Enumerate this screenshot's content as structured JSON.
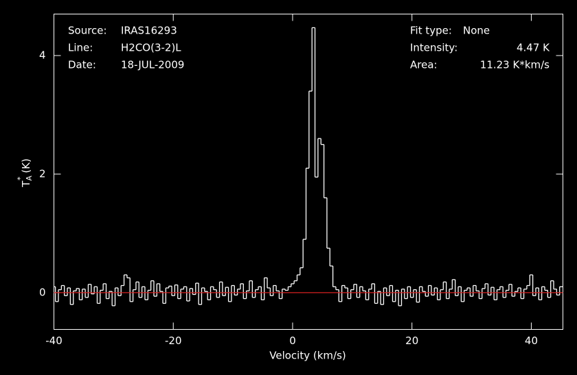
{
  "chart_data": {
    "type": "step",
    "xlabel": "Velocity (km/s)",
    "ylabel": {
      "symbol": "T",
      "sub": "A",
      "sup": "*",
      "unit": "(K)"
    },
    "annotations_left": [
      [
        "Source:",
        "IRAS16293"
      ],
      [
        "Line:",
        "H2CO(3-2)L"
      ],
      [
        "Date:",
        "18-JUL-2009"
      ]
    ],
    "annotations_right": [
      [
        "Fit type:",
        "None"
      ],
      [
        "Intensity:",
        "4.47 K"
      ],
      [
        "Area:",
        "11.23 K*km/s"
      ]
    ],
    "xlim": [
      -40,
      45.3
    ],
    "ylim": [
      -0.62,
      4.7
    ],
    "xticks": [
      -40,
      -20,
      0,
      20,
      40
    ],
    "yticks": [
      0,
      2,
      4
    ],
    "color": "#ffffff",
    "baseline_color": "#d62020",
    "x": [
      -40,
      -39.5,
      -39,
      -38.5,
      -38,
      -37.5,
      -37,
      -36.5,
      -36,
      -35.5,
      -35,
      -34.5,
      -34,
      -33.5,
      -33,
      -32.5,
      -32,
      -31.5,
      -31,
      -30.5,
      -30,
      -29.5,
      -29,
      -28.5,
      -28,
      -27.5,
      -27,
      -26.5,
      -26,
      -25.5,
      -25,
      -24.5,
      -24,
      -23.5,
      -23,
      -22.5,
      -22,
      -21.5,
      -21,
      -20.5,
      -20,
      -19.5,
      -19,
      -18.5,
      -18,
      -17.5,
      -17,
      -16.5,
      -16,
      -15.5,
      -15,
      -14.5,
      -14,
      -13.5,
      -13,
      -12.5,
      -12,
      -11.5,
      -11,
      -10.5,
      -10,
      -9.5,
      -9,
      -8.5,
      -8,
      -7.5,
      -7,
      -6.5,
      -6,
      -5.5,
      -5,
      -4.5,
      -4,
      -3.5,
      -3,
      -2.5,
      -2,
      -1.5,
      -1,
      -0.5,
      0,
      0.5,
      1,
      1.5,
      2,
      2.5,
      3,
      3.5,
      4,
      4.5,
      5,
      5.5,
      6,
      6.5,
      7,
      7.5,
      8,
      8.5,
      9,
      9.5,
      10,
      10.5,
      11,
      11.5,
      12,
      12.5,
      13,
      13.5,
      14,
      14.5,
      15,
      15.5,
      16,
      16.5,
      17,
      17.5,
      18,
      18.5,
      19,
      19.5,
      20,
      20.5,
      21,
      21.5,
      22,
      22.5,
      23,
      23.5,
      24,
      24.5,
      25,
      25.5,
      26,
      26.5,
      27,
      27.5,
      28,
      28.5,
      29,
      29.5,
      30,
      30.5,
      31,
      31.5,
      32,
      32.5,
      33,
      33.5,
      34,
      34.5,
      35,
      35.5,
      36,
      36.5,
      37,
      37.5,
      38,
      38.5,
      39,
      39.5,
      40,
      40.5,
      41,
      41.5,
      42,
      42.5,
      43,
      43.5,
      44,
      44.5,
      45
    ],
    "values": [
      0.1,
      -0.15,
      0.05,
      0.12,
      -0.05,
      0.08,
      -0.2,
      0.03,
      0.07,
      -0.12,
      0.06,
      -0.08,
      0.14,
      -0.02,
      0.1,
      -0.18,
      0.04,
      0.15,
      -0.1,
      0.02,
      -0.22,
      0.08,
      -0.05,
      0.12,
      0.3,
      0.25,
      -0.15,
      0.05,
      0.18,
      -0.08,
      0.1,
      -0.12,
      0.04,
      0.2,
      -0.06,
      0.15,
      0.02,
      -0.18,
      0.08,
      0.11,
      -0.05,
      0.13,
      -0.1,
      0.06,
      0.1,
      -0.14,
      0.07,
      -0.03,
      0.16,
      -0.2,
      0.08,
      0.02,
      -0.12,
      0.1,
      0.05,
      -0.08,
      0.18,
      -0.05,
      0.09,
      -0.15,
      0.12,
      -0.04,
      0.06,
      0.15,
      -0.1,
      0.03,
      0.2,
      -0.08,
      0.05,
      0.1,
      -0.12,
      0.25,
      0.08,
      -0.05,
      0.12,
      0.03,
      -0.1,
      0.06,
      0.04,
      0.1,
      0.15,
      0.2,
      0.3,
      0.42,
      0.9,
      2.1,
      3.4,
      4.47,
      1.95,
      2.6,
      2.5,
      1.6,
      0.75,
      0.45,
      0.1,
      0.05,
      -0.15,
      0.12,
      0.08,
      -0.1,
      0.05,
      0.14,
      -0.08,
      0.1,
      0.03,
      -0.12,
      0.06,
      0.15,
      -0.18,
      0.02,
      -0.2,
      0.08,
      -0.05,
      0.12,
      -0.15,
      0.04,
      -0.22,
      0.06,
      -0.1,
      0.1,
      -0.08,
      0.05,
      -0.16,
      0.1,
      0.02,
      -0.06,
      0.12,
      -0.04,
      0.08,
      -0.12,
      0.05,
      0.18,
      -0.1,
      0.06,
      0.22,
      -0.05,
      0.1,
      -0.15,
      0.04,
      0.08,
      -0.06,
      0.12,
      0.03,
      -0.1,
      0.07,
      0.15,
      -0.04,
      0.09,
      -0.12,
      0.05,
      0.1,
      -0.08,
      0.04,
      0.14,
      -0.06,
      0.02,
      0.08,
      -0.1,
      0.06,
      0.12,
      0.3,
      -0.05,
      0.08,
      -0.12,
      0.1,
      0.04,
      -0.08,
      0.2,
      0.06,
      -0.04,
      0.1
    ]
  }
}
